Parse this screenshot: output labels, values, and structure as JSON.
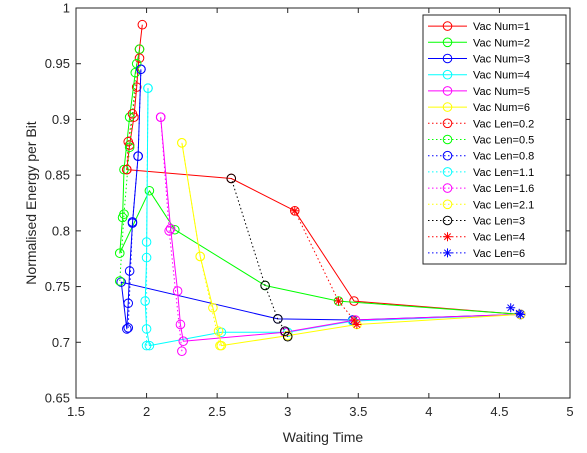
{
  "chart_data": {
    "type": "line",
    "xlabel": "Waiting Time",
    "ylabel": "Normalised Energy per Bit",
    "xlim": [
      1.5,
      5
    ],
    "ylim": [
      0.65,
      1
    ],
    "xticks": [
      "1.5",
      "2",
      "2.5",
      "3",
      "3.5",
      "4",
      "4.5",
      "5"
    ],
    "yticks": [
      "0.65",
      "0.7",
      "0.75",
      "0.8",
      "0.85",
      "0.9",
      "0.95",
      "1"
    ],
    "grid": false,
    "legend_position": "top-right",
    "series": [
      {
        "name": "Vac Num=1",
        "color": "#ff0000",
        "style": "solid",
        "marker": "circle",
        "x": [
          1.97,
          1.95,
          1.93,
          1.91,
          1.88,
          1.86,
          2.6,
          3.05,
          3.47,
          4.65
        ],
        "y": [
          0.985,
          0.963,
          0.929,
          0.902,
          0.877,
          0.855,
          0.847,
          0.818,
          0.737,
          0.725
        ]
      },
      {
        "name": "Vac Num=2",
        "color": "#00ff00",
        "style": "solid",
        "marker": "circle",
        "x": [
          1.95,
          1.92,
          1.88,
          1.84,
          1.83,
          1.81,
          2.02,
          2.2,
          2.84,
          3.36,
          4.65
        ],
        "y": [
          0.963,
          0.942,
          0.902,
          0.855,
          0.812,
          0.78,
          0.836,
          0.801,
          0.751,
          0.737,
          0.725
        ]
      },
      {
        "name": "Vac Num=3",
        "color": "#0000ff",
        "style": "solid",
        "marker": "circle",
        "x": [
          1.96,
          1.94,
          1.9,
          1.88,
          1.87,
          1.86,
          1.82,
          2.93,
          3.46,
          4.65
        ],
        "y": [
          0.945,
          0.867,
          0.807,
          0.764,
          0.735,
          0.712,
          0.754,
          0.721,
          0.72,
          0.725
        ]
      },
      {
        "name": "Vac Num=4",
        "color": "#00ffff",
        "style": "solid",
        "marker": "circle",
        "x": [
          2.01,
          2.0,
          1.99,
          2.0,
          2.02,
          2.53,
          3.0,
          3.46,
          4.65
        ],
        "y": [
          0.928,
          0.776,
          0.737,
          0.712,
          0.697,
          0.709,
          0.709,
          0.719,
          0.725
        ]
      },
      {
        "name": "Vac Num=5",
        "color": "#ff00ff",
        "style": "solid",
        "marker": "circle",
        "x": [
          2.1,
          2.17,
          2.22,
          2.24,
          2.26,
          2.98,
          3.48,
          4.65
        ],
        "y": [
          0.902,
          0.802,
          0.746,
          0.716,
          0.701,
          0.709,
          0.72,
          0.725
        ]
      },
      {
        "name": "Vac Num=6",
        "color": "#ffff00",
        "style": "solid",
        "marker": "circle",
        "x": [
          2.25,
          2.38,
          2.47,
          2.51,
          2.53,
          3.0,
          3.49,
          4.65
        ],
        "y": [
          0.879,
          0.777,
          0.731,
          0.71,
          0.697,
          0.706,
          0.716,
          0.725
        ]
      },
      {
        "name": "Vac Len=0.2",
        "color": "#ff0000",
        "style": "dotted",
        "marker": "circle",
        "x": [
          1.86,
          1.87,
          1.9,
          1.95
        ],
        "y": [
          0.855,
          0.88,
          0.905,
          0.955
        ]
      },
      {
        "name": "Vac Len=0.5",
        "color": "#00ff00",
        "style": "dotted",
        "marker": "circle",
        "x": [
          1.81,
          1.84,
          1.88,
          1.93
        ],
        "y": [
          0.755,
          0.815,
          0.875,
          0.95
        ]
      },
      {
        "name": "Vac Len=0.8",
        "color": "#0000ff",
        "style": "dotted",
        "marker": "circle",
        "x": [
          1.87,
          1.9,
          1.94,
          1.96
        ],
        "y": [
          0.713,
          0.808,
          0.867,
          0.945
        ]
      },
      {
        "name": "Vac Len=1.1",
        "color": "#00ffff",
        "style": "dotted",
        "marker": "circle",
        "x": [
          2.0,
          2.0,
          2.01
        ],
        "y": [
          0.697,
          0.79,
          0.928
        ]
      },
      {
        "name": "Vac Len=1.6",
        "color": "#ff00ff",
        "style": "dotted",
        "marker": "circle",
        "x": [
          2.25,
          2.16,
          2.1
        ],
        "y": [
          0.692,
          0.8,
          0.902
        ]
      },
      {
        "name": "Vac Len=2.1",
        "color": "#ffff00",
        "style": "dotted",
        "marker": "circle",
        "x": [
          2.52,
          2.38,
          2.25
        ],
        "y": [
          0.697,
          0.777,
          0.879
        ]
      },
      {
        "name": "Vac Len=3",
        "color": "#000000",
        "style": "dotted",
        "marker": "circle",
        "x": [
          3.0,
          2.98,
          2.93,
          2.84,
          2.6
        ],
        "y": [
          0.705,
          0.71,
          0.721,
          0.751,
          0.847
        ]
      },
      {
        "name": "Vac Len=4",
        "color": "#ff0000",
        "style": "dotted",
        "marker": "asterisk",
        "x": [
          3.49,
          3.47,
          3.36,
          3.05
        ],
        "y": [
          0.716,
          0.72,
          0.737,
          0.818
        ]
      },
      {
        "name": "Vac Len=6",
        "color": "#0000ff",
        "style": "dotted",
        "marker": "asterisk",
        "x": [
          4.65,
          4.64,
          4.58
        ],
        "y": [
          0.725,
          0.726,
          0.731
        ]
      }
    ]
  }
}
